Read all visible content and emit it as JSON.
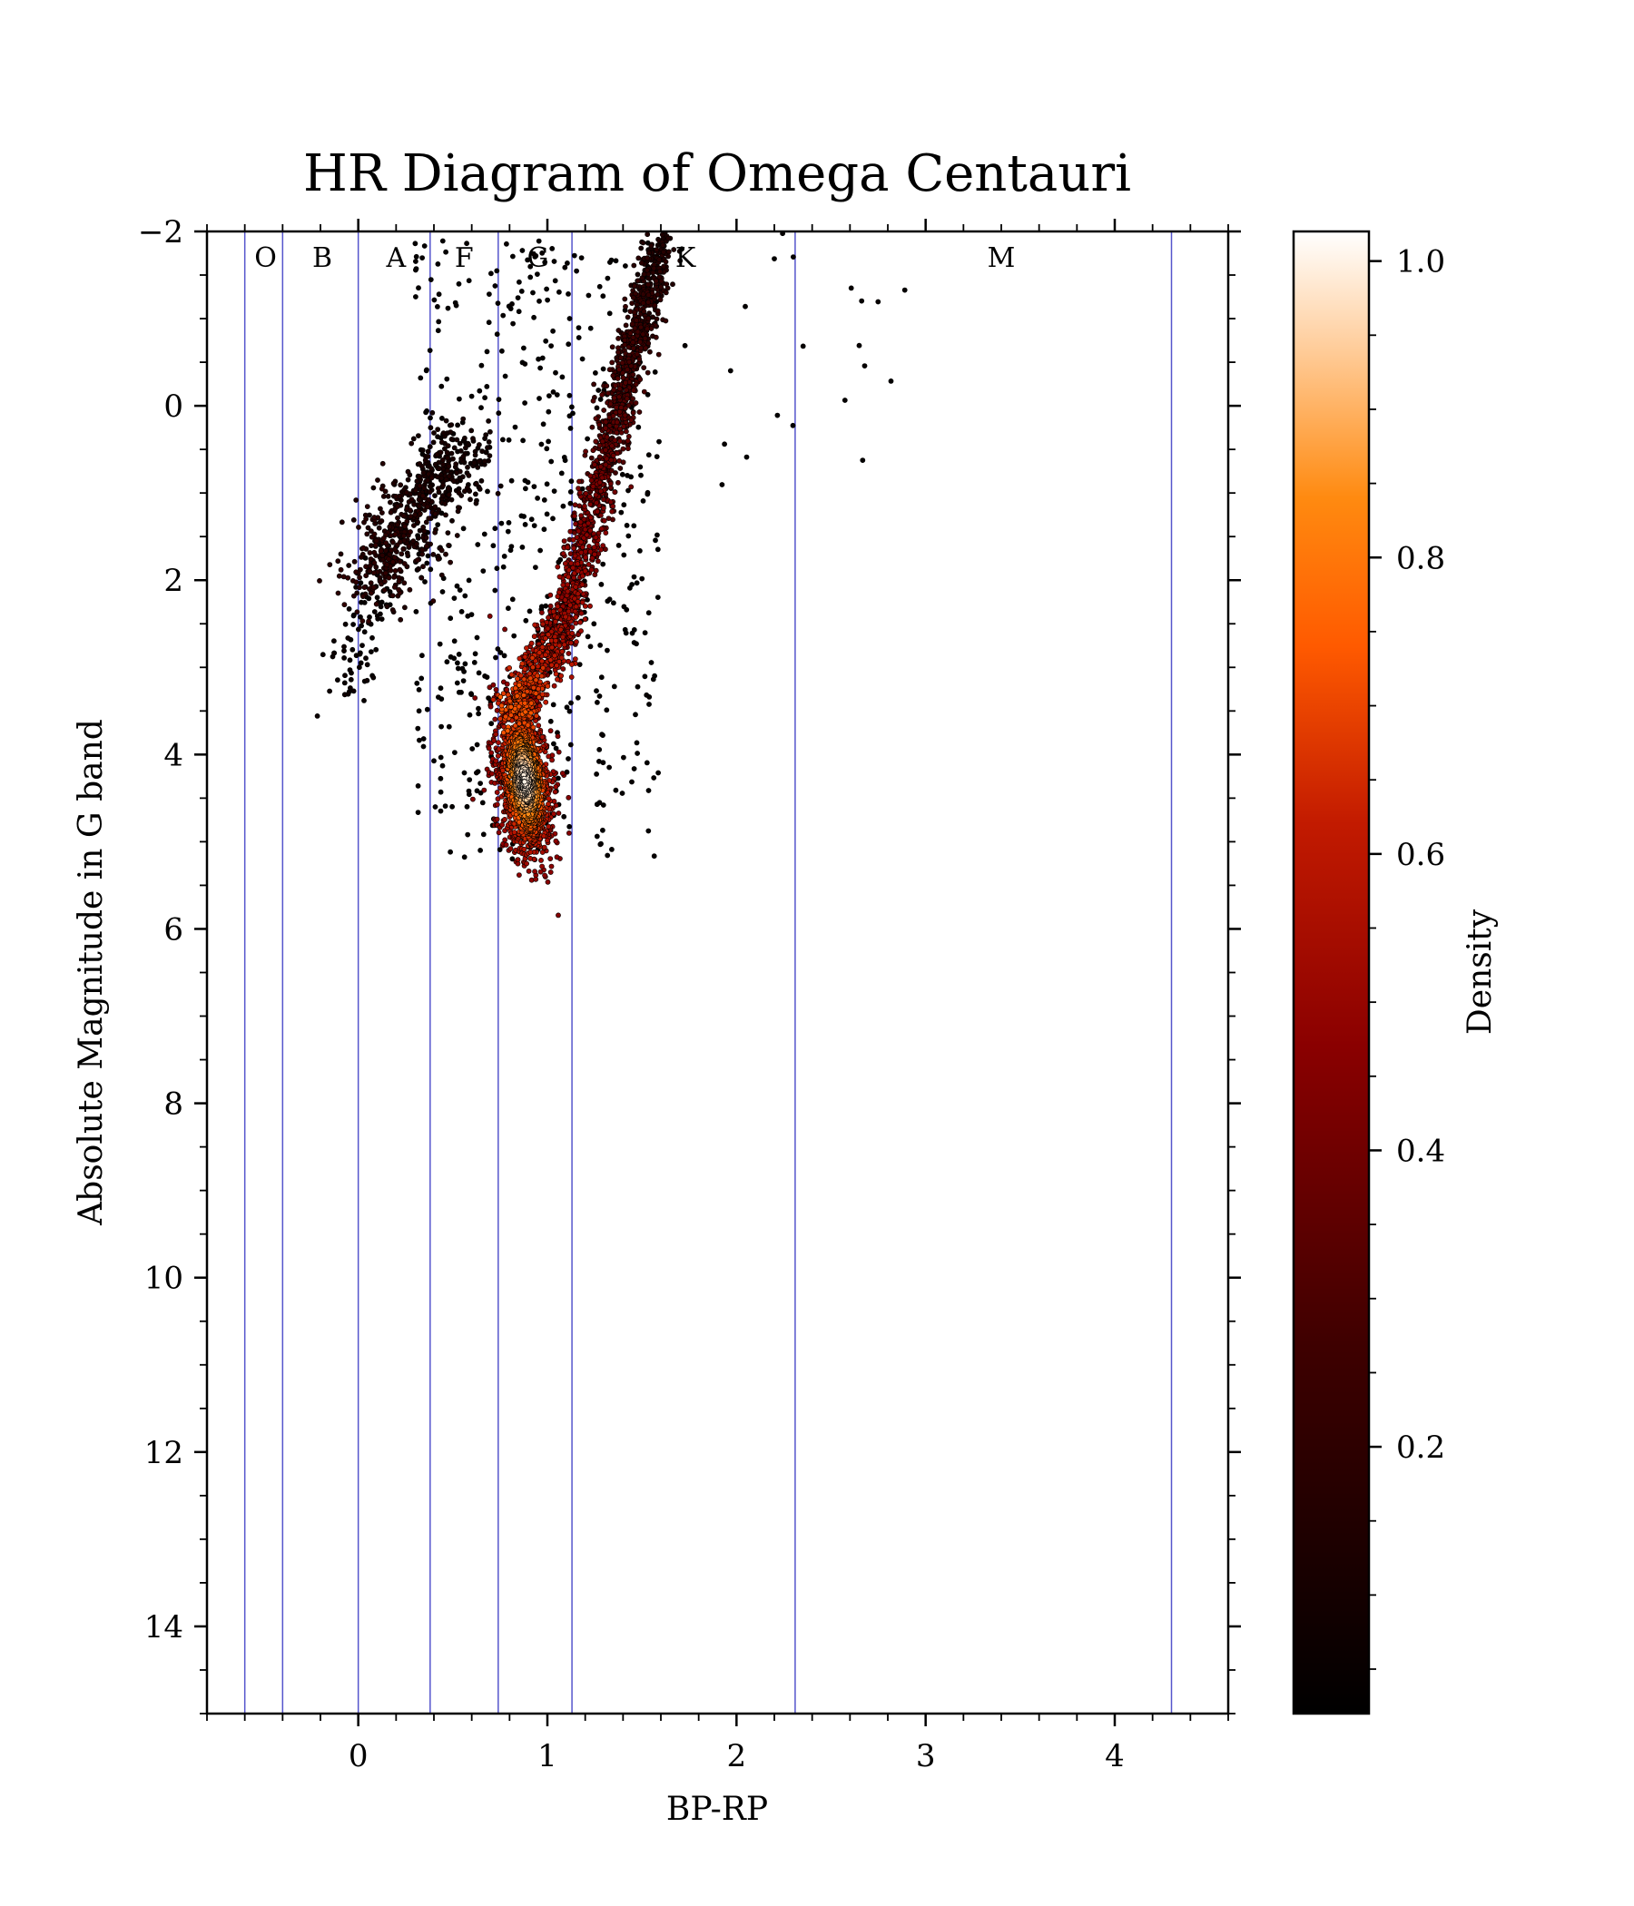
{
  "chart_data": {
    "type": "scatter",
    "title": "HR Diagram of Omega Centauri",
    "xlabel": "BP-RP",
    "ylabel": "Absolute Magnitude in G band",
    "xlim": [
      -0.8,
      4.6
    ],
    "ylim": [
      15,
      -2
    ],
    "y_inverted": true,
    "x_ticks": [
      0,
      1,
      2,
      3,
      4
    ],
    "x_tick_labels": [
      "0",
      "1",
      "2",
      "3",
      "4"
    ],
    "y_ticks": [
      -2,
      0,
      2,
      4,
      6,
      8,
      10,
      12,
      14
    ],
    "y_tick_labels": [
      "−2",
      "0",
      "2",
      "4",
      "6",
      "8",
      "10",
      "12",
      "14"
    ],
    "grid": false,
    "spectral_class_boundaries": [
      -0.6,
      -0.4,
      0.0,
      0.38,
      0.74,
      1.13,
      2.31,
      4.3
    ],
    "spectral_classes": [
      {
        "label": "O",
        "x": -0.49
      },
      {
        "label": "B",
        "x": -0.19
      },
      {
        "label": "A",
        "x": 0.2
      },
      {
        "label": "F",
        "x": 0.56
      },
      {
        "label": "G",
        "x": 0.95
      },
      {
        "label": "K",
        "x": 1.73
      },
      {
        "label": "M",
        "x": 3.4
      }
    ],
    "class_label_y": -1.7,
    "boundary_color": "#5555cc",
    "colorbar": {
      "label": "Density",
      "ticks": [
        0.2,
        0.4,
        0.6,
        0.8,
        1.0
      ],
      "tick_labels": [
        "0.2",
        "0.4",
        "0.6",
        "0.8",
        "1.0"
      ],
      "range": [
        0.02,
        1.02
      ],
      "colormap": "gist_heat"
    },
    "point_groups": [
      {
        "name": "main-sequence-turnoff",
        "x": 0.88,
        "y": 4.3,
        "sx": 0.07,
        "sy": 0.45,
        "n": 1400,
        "d0": 1.0,
        "d1": 0.45
      },
      {
        "name": "subgiant-branch",
        "x0": 0.82,
        "y0": 3.6,
        "x1": 1.1,
        "y1": 2.4,
        "n": 650,
        "spread": 0.05,
        "d0": 0.75,
        "d1": 0.5
      },
      {
        "name": "red-giant-branch",
        "x0": 1.1,
        "y0": 2.4,
        "x1": 1.6,
        "y1": -1.9,
        "n": 1300,
        "spread": 0.045,
        "d0": 0.55,
        "d1": 0.15
      },
      {
        "name": "horizontal-branch",
        "x0": 0.05,
        "y0": 2.0,
        "x1": 0.55,
        "y1": 0.5,
        "n": 650,
        "spread": 0.1,
        "d0": 0.22,
        "d1": 0.1
      },
      {
        "name": "blue-hb-tail",
        "x0": -0.1,
        "y0": 3.4,
        "x1": 0.15,
        "y1": 1.8,
        "n": 90,
        "spread": 0.07,
        "d0": 0.08,
        "d1": 0.05
      },
      {
        "name": "field-scatter",
        "x": [
          0.3,
          1.6
        ],
        "y": [
          -1.9,
          5.2
        ],
        "n": 520,
        "d0": 0.05,
        "d1": 0.03
      },
      {
        "name": "red-outliers",
        "x": [
          1.7,
          2.9
        ],
        "y": [
          -2.0,
          1.0
        ],
        "n": 22,
        "d0": 0.05,
        "d1": 0.03
      }
    ]
  }
}
